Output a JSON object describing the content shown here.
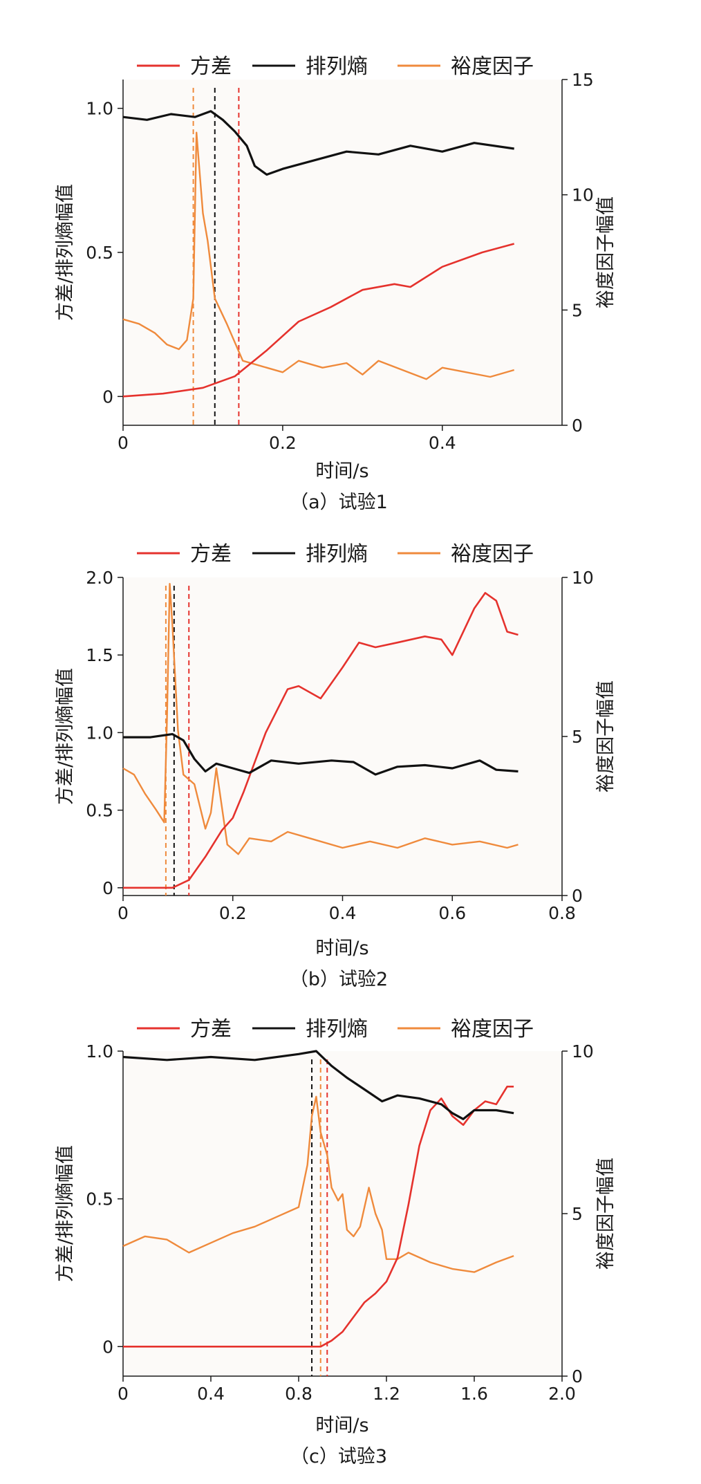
{
  "legend": {
    "variance": "方差",
    "permutation_entropy": "排列熵",
    "margin_factor": "裕度因子"
  },
  "colors": {
    "variance": "#e5322d",
    "permutation_entropy": "#111111",
    "margin_factor": "#ef8a3c",
    "plot_background": "#fcfaf8"
  },
  "chart_data": [
    {
      "type": "line",
      "caption": "（a）试验1",
      "xlabel": "时间/s",
      "ylabel_left": "方差/排列熵幅值",
      "ylabel_right": "裕度因子幅值",
      "xlim": [
        0,
        0.55
      ],
      "ylim_left": [
        -0.1,
        1.1
      ],
      "ylim_right": [
        0,
        15
      ],
      "x_ticks": [
        "0",
        "0.2",
        "0.4"
      ],
      "y_left_ticks": [
        "0",
        "0.5",
        "1.0"
      ],
      "y_right_ticks": [
        "0",
        "5",
        "10",
        "15"
      ],
      "series": [
        {
          "key": "variance",
          "axis": "left",
          "x": [
            0,
            0.05,
            0.1,
            0.14,
            0.18,
            0.22,
            0.26,
            0.3,
            0.34,
            0.36,
            0.4,
            0.45,
            0.49
          ],
          "values": [
            0,
            0.01,
            0.03,
            0.07,
            0.16,
            0.26,
            0.31,
            0.37,
            0.39,
            0.38,
            0.45,
            0.5,
            0.53
          ]
        },
        {
          "key": "permutation_entropy",
          "axis": "left",
          "x": [
            0,
            0.03,
            0.06,
            0.09,
            0.11,
            0.125,
            0.14,
            0.155,
            0.165,
            0.18,
            0.2,
            0.24,
            0.28,
            0.32,
            0.36,
            0.4,
            0.44,
            0.49
          ],
          "values": [
            0.97,
            0.96,
            0.98,
            0.97,
            0.99,
            0.96,
            0.92,
            0.87,
            0.8,
            0.77,
            0.79,
            0.82,
            0.85,
            0.84,
            0.87,
            0.85,
            0.88,
            0.86
          ]
        },
        {
          "key": "margin_factor",
          "axis": "right",
          "x": [
            0,
            0.02,
            0.04,
            0.055,
            0.07,
            0.08,
            0.088,
            0.092,
            0.1,
            0.106,
            0.115,
            0.13,
            0.15,
            0.18,
            0.2,
            0.22,
            0.25,
            0.28,
            0.3,
            0.32,
            0.35,
            0.38,
            0.4,
            0.43,
            0.46,
            0.49
          ],
          "values": [
            4.6,
            4.4,
            4.0,
            3.5,
            3.3,
            3.7,
            5.5,
            12.7,
            9.2,
            8.0,
            5.5,
            4.4,
            2.8,
            2.5,
            2.3,
            2.8,
            2.5,
            2.7,
            2.2,
            2.8,
            2.4,
            2.0,
            2.5,
            2.3,
            2.1,
            2.4
          ]
        }
      ],
      "markers": [
        {
          "key": "margin_factor",
          "x": 0.088
        },
        {
          "key": "permutation_entropy",
          "x": 0.115
        },
        {
          "key": "variance",
          "x": 0.145
        }
      ]
    },
    {
      "type": "line",
      "caption": "（b）试验2",
      "xlabel": "时间/s",
      "ylabel_left": "方差/排列熵幅值",
      "ylabel_right": "裕度因子幅值",
      "xlim": [
        0,
        0.8
      ],
      "ylim_left": [
        -0.05,
        2.0
      ],
      "ylim_right": [
        0,
        10
      ],
      "x_ticks": [
        "0",
        "0.2",
        "0.4",
        "0.6",
        "0.8"
      ],
      "y_left_ticks": [
        "0",
        "0.5",
        "1.0",
        "1.5",
        "2.0"
      ],
      "y_right_ticks": [
        "0",
        "5",
        "10"
      ],
      "series": [
        {
          "key": "variance",
          "axis": "left",
          "x": [
            0,
            0.09,
            0.12,
            0.15,
            0.18,
            0.2,
            0.22,
            0.26,
            0.3,
            0.32,
            0.36,
            0.4,
            0.43,
            0.46,
            0.5,
            0.55,
            0.58,
            0.6,
            0.64,
            0.66,
            0.68,
            0.7,
            0.72
          ],
          "values": [
            0,
            0.0,
            0.05,
            0.2,
            0.37,
            0.45,
            0.62,
            1.0,
            1.28,
            1.3,
            1.22,
            1.42,
            1.58,
            1.55,
            1.58,
            1.62,
            1.6,
            1.5,
            1.8,
            1.9,
            1.85,
            1.65,
            1.63
          ]
        },
        {
          "key": "permutation_entropy",
          "axis": "left",
          "x": [
            0,
            0.05,
            0.09,
            0.11,
            0.13,
            0.15,
            0.17,
            0.2,
            0.23,
            0.27,
            0.32,
            0.38,
            0.42,
            0.46,
            0.5,
            0.55,
            0.6,
            0.65,
            0.68,
            0.72
          ],
          "values": [
            0.97,
            0.97,
            0.99,
            0.95,
            0.83,
            0.75,
            0.8,
            0.77,
            0.74,
            0.82,
            0.8,
            0.82,
            0.81,
            0.73,
            0.78,
            0.79,
            0.77,
            0.82,
            0.76,
            0.75
          ]
        },
        {
          "key": "margin_factor",
          "axis": "right",
          "x": [
            0,
            0.02,
            0.04,
            0.06,
            0.075,
            0.08,
            0.085,
            0.09,
            0.1,
            0.11,
            0.13,
            0.15,
            0.16,
            0.17,
            0.19,
            0.21,
            0.23,
            0.27,
            0.3,
            0.34,
            0.4,
            0.45,
            0.5,
            0.55,
            0.6,
            0.65,
            0.7,
            0.72
          ],
          "values": [
            4.0,
            3.8,
            3.2,
            2.7,
            2.3,
            5.5,
            9.8,
            8.5,
            5.2,
            3.8,
            3.5,
            2.1,
            2.6,
            4.0,
            1.6,
            1.3,
            1.8,
            1.7,
            2.0,
            1.8,
            1.5,
            1.7,
            1.5,
            1.8,
            1.6,
            1.7,
            1.5,
            1.6
          ]
        }
      ],
      "markers": [
        {
          "key": "margin_factor",
          "x": 0.078
        },
        {
          "key": "permutation_entropy",
          "x": 0.093
        },
        {
          "key": "variance",
          "x": 0.12
        }
      ]
    },
    {
      "type": "line",
      "caption": "（c）试验3",
      "xlabel": "时间/s",
      "ylabel_left": "方差/排列熵幅值",
      "ylabel_right": "裕度因子幅值",
      "xlim": [
        0,
        2.0
      ],
      "ylim_left": [
        -0.1,
        1.0
      ],
      "ylim_right": [
        0,
        10
      ],
      "x_ticks": [
        "0",
        "0.4",
        "0.8",
        "1.2",
        "1.6",
        "2.0"
      ],
      "y_left_ticks": [
        "0",
        "0.5",
        "1.0"
      ],
      "y_right_ticks": [
        "0",
        "5",
        "10"
      ],
      "series": [
        {
          "key": "variance",
          "axis": "left",
          "x": [
            0,
            0.4,
            0.8,
            0.9,
            0.95,
            1.0,
            1.05,
            1.1,
            1.15,
            1.2,
            1.25,
            1.3,
            1.35,
            1.4,
            1.45,
            1.5,
            1.55,
            1.6,
            1.65,
            1.7,
            1.75,
            1.78
          ],
          "values": [
            0,
            0,
            0,
            0.0,
            0.02,
            0.05,
            0.1,
            0.15,
            0.18,
            0.22,
            0.3,
            0.48,
            0.68,
            0.8,
            0.84,
            0.78,
            0.75,
            0.8,
            0.83,
            0.82,
            0.88,
            0.88
          ]
        },
        {
          "key": "permutation_entropy",
          "axis": "left",
          "x": [
            0,
            0.2,
            0.4,
            0.6,
            0.8,
            0.88,
            0.95,
            1.02,
            1.1,
            1.18,
            1.25,
            1.35,
            1.45,
            1.5,
            1.55,
            1.6,
            1.7,
            1.78
          ],
          "values": [
            0.98,
            0.97,
            0.98,
            0.97,
            0.99,
            1.0,
            0.95,
            0.91,
            0.87,
            0.83,
            0.85,
            0.84,
            0.82,
            0.79,
            0.77,
            0.8,
            0.8,
            0.79
          ]
        },
        {
          "key": "margin_factor",
          "axis": "right",
          "x": [
            0,
            0.1,
            0.2,
            0.3,
            0.4,
            0.5,
            0.6,
            0.7,
            0.8,
            0.84,
            0.86,
            0.88,
            0.9,
            0.93,
            0.95,
            0.98,
            1.0,
            1.02,
            1.05,
            1.08,
            1.12,
            1.15,
            1.18,
            1.2,
            1.25,
            1.3,
            1.4,
            1.5,
            1.6,
            1.7,
            1.78
          ],
          "values": [
            4.0,
            4.3,
            4.2,
            3.8,
            4.1,
            4.4,
            4.6,
            4.9,
            5.2,
            6.5,
            8.0,
            8.6,
            7.5,
            6.8,
            5.8,
            5.4,
            5.6,
            4.5,
            4.3,
            4.6,
            5.8,
            5.0,
            4.5,
            3.6,
            3.6,
            3.8,
            3.5,
            3.3,
            3.2,
            3.5,
            3.7
          ]
        }
      ],
      "markers": [
        {
          "key": "permutation_entropy",
          "x": 0.86
        },
        {
          "key": "margin_factor",
          "x": 0.9
        },
        {
          "key": "variance",
          "x": 0.93
        }
      ]
    }
  ]
}
